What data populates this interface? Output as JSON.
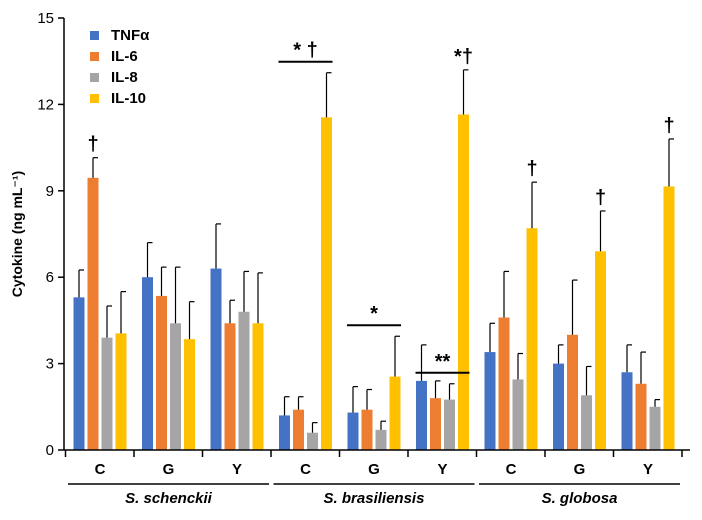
{
  "chart_data": {
    "type": "bar",
    "title": "",
    "xlabel": "",
    "ylabel": "Cytokine (ng mL⁻¹)",
    "ylim": [
      0,
      15
    ],
    "yticks": [
      "0",
      "3",
      "6",
      "9",
      "12",
      "15"
    ],
    "ytick_values": [
      0,
      3,
      6,
      9,
      12,
      15
    ],
    "legend_position": "top-left",
    "categories": [
      "C",
      "G",
      "Y",
      "C",
      "G",
      "Y",
      "C",
      "G",
      "Y"
    ],
    "groups": [
      {
        "name": "S. schenckii",
        "categories": [
          "C",
          "G",
          "Y"
        ]
      },
      {
        "name": "S. brasiliensis",
        "categories": [
          "C",
          "G",
          "Y"
        ]
      },
      {
        "name": "S. globosa",
        "categories": [
          "C",
          "G",
          "Y"
        ]
      }
    ],
    "series": [
      {
        "name": "TNFα",
        "color": "#4472C4",
        "values": [
          5.3,
          6.0,
          6.3,
          1.2,
          1.3,
          2.4,
          3.4,
          3.0,
          2.7
        ],
        "errors": [
          0.95,
          1.2,
          1.55,
          0.65,
          0.9,
          1.25,
          1.0,
          0.65,
          0.95
        ]
      },
      {
        "name": "IL-6",
        "color": "#ED7D31",
        "values": [
          9.45,
          5.35,
          4.4,
          1.4,
          1.4,
          1.8,
          4.6,
          4.0,
          2.3
        ],
        "errors": [
          0.7,
          1.0,
          0.8,
          0.45,
          0.7,
          0.6,
          1.6,
          1.9,
          1.1
        ]
      },
      {
        "name": "IL-8",
        "color": "#A5A5A5",
        "values": [
          3.9,
          4.4,
          4.8,
          0.6,
          0.7,
          1.75,
          2.45,
          1.9,
          1.5
        ],
        "errors": [
          1.1,
          1.95,
          1.4,
          0.35,
          0.3,
          0.55,
          0.9,
          1.0,
          0.25
        ]
      },
      {
        "name": "IL-10",
        "color": "#FFC000",
        "values": [
          4.05,
          3.85,
          4.4,
          11.55,
          2.55,
          11.65,
          7.7,
          6.9,
          9.15
        ],
        "errors": [
          1.45,
          1.3,
          1.75,
          1.55,
          1.4,
          1.55,
          1.6,
          1.4,
          1.65
        ]
      }
    ],
    "annotations": [
      {
        "text": "†",
        "category_index": 0,
        "series": "IL-6"
      },
      {
        "text": "* †",
        "category_index": 3,
        "series": "IL-10",
        "bracket": true
      },
      {
        "text": "*",
        "category_index": 4,
        "series": "IL-10",
        "bracket": true
      },
      {
        "text": "**",
        "category_index": 5,
        "series": "IL-8",
        "bracket": true
      },
      {
        "text": "*†",
        "category_index": 5,
        "series": "IL-10"
      },
      {
        "text": "†",
        "category_index": 6,
        "series": "IL-10"
      },
      {
        "text": "†",
        "category_index": 7,
        "series": "IL-10"
      },
      {
        "text": "†",
        "category_index": 8,
        "series": "IL-10"
      }
    ]
  }
}
